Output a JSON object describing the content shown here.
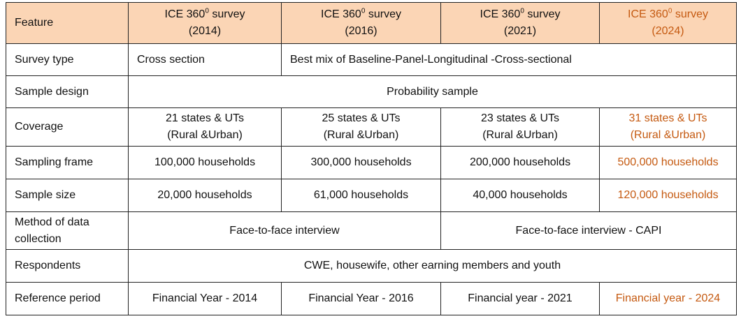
{
  "header": [
    "Feature",
    {
      "pre": "ICE 360",
      "sup": "0",
      "post": " survey",
      "year": "(2014)"
    },
    {
      "pre": "ICE 360",
      "sup": "0",
      "post": " survey",
      "year": "(2016)"
    },
    {
      "pre": "ICE 360",
      "sup": "0",
      "post": " survey",
      "year": "(2021)"
    },
    {
      "pre": "ICE 360",
      "sup": "0",
      "post": " survey",
      "year": "(2024)"
    }
  ],
  "rows": [
    {
      "label": "Survey type",
      "cells": [
        "Cross section",
        "Best mix of Baseline-Panel-Longitudinal -Cross-sectional"
      ]
    },
    {
      "label": "Sample design",
      "cells": [
        "Probability sample"
      ]
    },
    {
      "label": "Coverage",
      "cells": [
        [
          "21 states & UTs",
          "(Rural &Urban)"
        ],
        [
          "25 states & UTs",
          "(Rural &Urban)"
        ],
        [
          "23 states & UTs",
          "(Rural &Urban)"
        ],
        [
          "31 states & UTs",
          "(Rural &Urban)"
        ]
      ]
    },
    {
      "label": "Sampling frame",
      "cells": [
        "100,000 households",
        "300,000 households",
        "200,000 households",
        "500,000 households"
      ]
    },
    {
      "label": "Sample size",
      "cells": [
        "20,000 households",
        "61,000 households",
        "40,000 households",
        "120,000 households"
      ]
    },
    {
      "label": "Method of data collection",
      "cells": [
        "Face-to-face interview",
        "Face-to-face interview - CAPI"
      ]
    },
    {
      "label": "Respondents",
      "cells": [
        "CWE, housewife, other earning members and youth"
      ]
    },
    {
      "label": "Reference period",
      "cells": [
        "Financial Year - 2014",
        "Financial Year - 2016",
        "Financial year - 2021",
        "Financial year - 2024"
      ]
    }
  ]
}
